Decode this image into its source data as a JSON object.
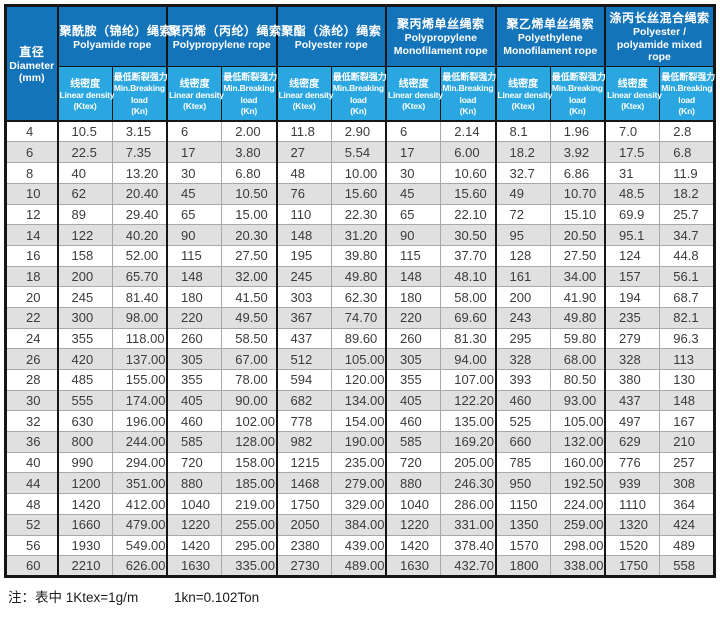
{
  "colors": {
    "header_dark": "#1474ba",
    "header_light": "#2aa7e0",
    "row_alt": "#e0e0e0",
    "border_dark": "#161616",
    "grid_light": "#a8a8a8"
  },
  "table": {
    "diameter_header": {
      "zh": "直径",
      "en": "Diameter",
      "unit": "(mm)"
    },
    "groups": [
      {
        "zh": "聚酰胺（锦纶）绳索",
        "en": "Polyamide rope"
      },
      {
        "zh": "聚丙烯（丙纶）绳索",
        "en": "Polypropylene rope"
      },
      {
        "zh": "聚酯（涤纶）绳索",
        "en": "Polyester rope"
      },
      {
        "zh": "聚丙烯单丝绳索",
        "en": "Polypropylene Monofilament rope"
      },
      {
        "zh": "聚乙烯单丝绳索",
        "en": "Polyethylene Monofilament rope"
      },
      {
        "zh": "涤丙长丝混合绳索",
        "en": "Polyester / polyamide mixed rope"
      }
    ],
    "sub_density": {
      "zh": "线密度",
      "en": "Linear density",
      "unit": "(Ktex)"
    },
    "sub_breaking": {
      "zh": "最低断裂强力",
      "en": "Min.Breaking",
      "en2": "load",
      "unit": "(Kn)"
    },
    "rows": [
      [
        "4",
        "10.5",
        "3.15",
        "6",
        "2.00",
        "11.8",
        "2.90",
        "6",
        "2.14",
        "8.1",
        "1.96",
        "7.0",
        "2.8"
      ],
      [
        "6",
        "22.5",
        "7.35",
        "17",
        "3.80",
        "27",
        "5.54",
        "17",
        "6.00",
        "18.2",
        "3.92",
        "17.5",
        "6.8"
      ],
      [
        "8",
        "40",
        "13.20",
        "30",
        "6.80",
        "48",
        "10.00",
        "30",
        "10.60",
        "32.7",
        "6.86",
        "31",
        "11.9"
      ],
      [
        "10",
        "62",
        "20.40",
        "45",
        "10.50",
        "76",
        "15.60",
        "45",
        "15.60",
        "49",
        "10.70",
        "48.5",
        "18.2"
      ],
      [
        "12",
        "89",
        "29.40",
        "65",
        "15.00",
        "110",
        "22.30",
        "65",
        "22.10",
        "72",
        "15.10",
        "69.9",
        "25.7"
      ],
      [
        "14",
        "122",
        "40.20",
        "90",
        "20.30",
        "148",
        "31.20",
        "90",
        "30.50",
        "95",
        "20.50",
        "95.1",
        "34.7"
      ],
      [
        "16",
        "158",
        "52.00",
        "115",
        "27.50",
        "195",
        "39.80",
        "115",
        "37.70",
        "128",
        "27.50",
        "124",
        "44.8"
      ],
      [
        "18",
        "200",
        "65.70",
        "148",
        "32.00",
        "245",
        "49.80",
        "148",
        "48.10",
        "161",
        "34.00",
        "157",
        "56.1"
      ],
      [
        "20",
        "245",
        "81.40",
        "180",
        "41.50",
        "303",
        "62.30",
        "180",
        "58.00",
        "200",
        "41.90",
        "194",
        "68.7"
      ],
      [
        "22",
        "300",
        "98.00",
        "220",
        "49.50",
        "367",
        "74.70",
        "220",
        "69.60",
        "243",
        "49.80",
        "235",
        "82.1"
      ],
      [
        "24",
        "355",
        "118.00",
        "260",
        "58.50",
        "437",
        "89.60",
        "260",
        "81.30",
        "295",
        "59.80",
        "279",
        "96.3"
      ],
      [
        "26",
        "420",
        "137.00",
        "305",
        "67.00",
        "512",
        "105.00",
        "305",
        "94.00",
        "328",
        "68.00",
        "328",
        "113"
      ],
      [
        "28",
        "485",
        "155.00",
        "355",
        "78.00",
        "594",
        "120.00",
        "355",
        "107.00",
        "393",
        "80.50",
        "380",
        "130"
      ],
      [
        "30",
        "555",
        "174.00",
        "405",
        "90.00",
        "682",
        "134.00",
        "405",
        "122.20",
        "460",
        "93.00",
        "437",
        "148"
      ],
      [
        "32",
        "630",
        "196.00",
        "460",
        "102.00",
        "778",
        "154.00",
        "460",
        "135.00",
        "525",
        "105.00",
        "497",
        "167"
      ],
      [
        "36",
        "800",
        "244.00",
        "585",
        "128.00",
        "982",
        "190.00",
        "585",
        "169.20",
        "660",
        "132.00",
        "629",
        "210"
      ],
      [
        "40",
        "990",
        "294.00",
        "720",
        "158.00",
        "1215",
        "235.00",
        "720",
        "205.00",
        "785",
        "160.00",
        "776",
        "257"
      ],
      [
        "44",
        "1200",
        "351.00",
        "880",
        "185.00",
        "1468",
        "279.00",
        "880",
        "246.30",
        "950",
        "192.50",
        "939",
        "308"
      ],
      [
        "48",
        "1420",
        "412.00",
        "1040",
        "219.00",
        "1750",
        "329.00",
        "1040",
        "286.00",
        "1150",
        "224.00",
        "1110",
        "364"
      ],
      [
        "52",
        "1660",
        "479.00",
        "1220",
        "255.00",
        "2050",
        "384.00",
        "1220",
        "331.00",
        "1350",
        "259.00",
        "1320",
        "424"
      ],
      [
        "56",
        "1930",
        "549.00",
        "1420",
        "295.00",
        "2380",
        "439.00",
        "1420",
        "378.40",
        "1570",
        "298.00",
        "1520",
        "489"
      ],
      [
        "60",
        "2210",
        "626.00",
        "1630",
        "335.00",
        "2730",
        "489.00",
        "1630",
        "432.70",
        "1800",
        "338.00",
        "1750",
        "558"
      ]
    ]
  },
  "footnote": {
    "label": "注：表中",
    "ktex": "1Ktex=1g/m",
    "kn": "1kn=0.102Ton"
  }
}
